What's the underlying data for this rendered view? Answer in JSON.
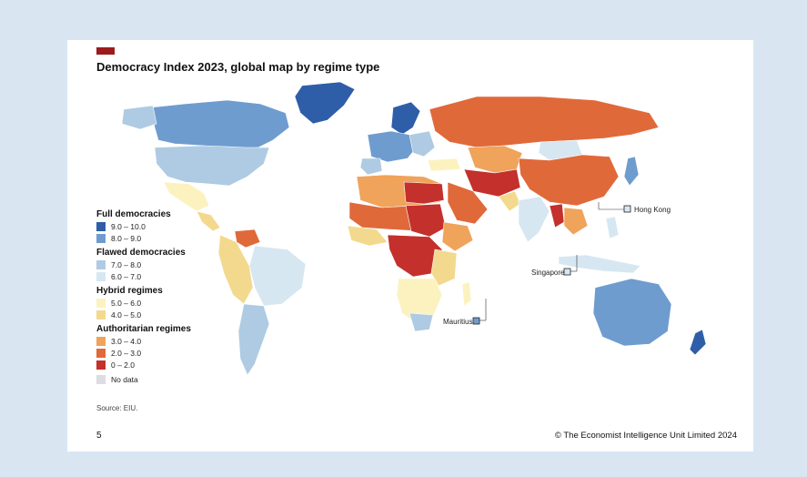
{
  "header": {
    "title": "Democracy Index 2023, global map by regime type",
    "brand_color": "#9b1c1c"
  },
  "legend": {
    "groups": [
      {
        "title": "Full democracies",
        "items": [
          {
            "label": "9.0 – 10.0",
            "color": "#2f5ea8"
          },
          {
            "label": "8.0 – 9.0",
            "color": "#6f9ccf"
          }
        ]
      },
      {
        "title": "Flawed democracies",
        "items": [
          {
            "label": "7.0 – 8.0",
            "color": "#aecbe3"
          },
          {
            "label": "6.0 – 7.0",
            "color": "#d6e7f2"
          }
        ]
      },
      {
        "title": "Hybrid regimes",
        "items": [
          {
            "label": "5.0 – 6.0",
            "color": "#fbf2c0"
          },
          {
            "label": "4.0 – 5.0",
            "color": "#f3d98d"
          }
        ]
      },
      {
        "title": "Authoritarian regimes",
        "items": [
          {
            "label": "3.0 – 4.0",
            "color": "#f0a35a"
          },
          {
            "label": "2.0 – 3.0",
            "color": "#e0693a"
          },
          {
            "label": "0 – 2.0",
            "color": "#c4302b"
          }
        ]
      }
    ],
    "no_data": {
      "label": "No data",
      "color": "#dcdce2"
    }
  },
  "callouts": {
    "hong_kong": "Hong Kong",
    "singapore": "Singapore",
    "mauritius": "Mauritius"
  },
  "footer": {
    "source": "Source: EIU.",
    "page_number": "5",
    "copyright": "© The Economist Intelligence Unit Limited 2024"
  }
}
